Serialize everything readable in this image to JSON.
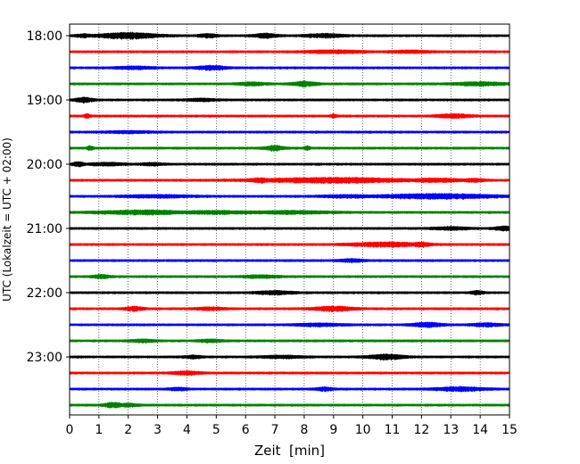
{
  "chart_data": {
    "type": "line",
    "title": "",
    "xlabel": "Zeit  [min]",
    "ylabel": "UTC (Lokalzeit = UTC + 02:00)",
    "xlim": [
      0,
      15
    ],
    "x_ticks": [
      0,
      1,
      2,
      3,
      4,
      5,
      6,
      7,
      8,
      9,
      10,
      11,
      12,
      13,
      14,
      15
    ],
    "y_tick_labels": [
      "18:00",
      "19:00",
      "20:00",
      "21:00",
      "22:00",
      "23:00"
    ],
    "y_tick_rows": [
      0,
      4,
      8,
      12,
      16,
      20
    ],
    "vertical_grid": true,
    "row_colors": [
      "#000000",
      "#ff0000",
      "#0000ff",
      "#008000"
    ],
    "rows": [
      {
        "start": "18:00",
        "bursts": [
          [
            2.0,
            1.0,
            3.0
          ],
          [
            4.7,
            0.3,
            1.8
          ],
          [
            6.7,
            0.4,
            2.0
          ],
          [
            8.7,
            0.6,
            2.0
          ],
          [
            0.5,
            0.3,
            1.4
          ]
        ]
      },
      {
        "start": "18:15",
        "bursts": [
          [
            9.0,
            1.0,
            1.4
          ],
          [
            11.6,
            0.6,
            1.2
          ]
        ]
      },
      {
        "start": "18:30",
        "bursts": [
          [
            4.8,
            0.5,
            2.0
          ],
          [
            2.2,
            0.6,
            1.3
          ]
        ]
      },
      {
        "start": "18:45",
        "bursts": [
          [
            8.0,
            0.4,
            2.4
          ],
          [
            6.2,
            0.5,
            1.4
          ],
          [
            14.0,
            0.8,
            1.8
          ]
        ]
      },
      {
        "start": "19:00",
        "bursts": [
          [
            0.5,
            0.3,
            2.4
          ],
          [
            4.5,
            0.5,
            1.2
          ]
        ]
      },
      {
        "start": "19:15",
        "bursts": [
          [
            0.6,
            0.1,
            2.3
          ],
          [
            9.0,
            0.1,
            1.8
          ],
          [
            13.1,
            0.6,
            1.8
          ]
        ]
      },
      {
        "start": "19:30",
        "bursts": [
          [
            2.0,
            0.8,
            0.9
          ]
        ]
      },
      {
        "start": "19:45",
        "bursts": [
          [
            0.7,
            0.1,
            2.2
          ],
          [
            7.0,
            0.3,
            2.6
          ],
          [
            8.1,
            0.1,
            2.0
          ]
        ]
      },
      {
        "start": "20:00",
        "bursts": [
          [
            0.3,
            0.2,
            2.2
          ],
          [
            1.3,
            0.6,
            1.4
          ],
          [
            2.8,
            0.4,
            1.2
          ]
        ]
      },
      {
        "start": "20:15",
        "bursts": [
          [
            6.5,
            0.4,
            2.0
          ],
          [
            9.0,
            2.5,
            2.5
          ],
          [
            12.5,
            0.9,
            1.8
          ],
          [
            13.8,
            0.4,
            1.4
          ]
        ]
      },
      {
        "start": "20:30",
        "bursts": [
          [
            12.5,
            2.0,
            2.4
          ],
          [
            3.0,
            1.2,
            1.3
          ],
          [
            9.5,
            1.0,
            1.2
          ]
        ]
      },
      {
        "start": "20:45",
        "bursts": [
          [
            2.5,
            1.5,
            2.0
          ],
          [
            5.0,
            1.5,
            1.4
          ],
          [
            7.5,
            1.5,
            1.4
          ]
        ]
      },
      {
        "start": "21:00",
        "bursts": [
          [
            14.8,
            0.3,
            2.2
          ],
          [
            13.0,
            0.6,
            1.4
          ]
        ]
      },
      {
        "start": "21:15",
        "bursts": [
          [
            10.8,
            1.2,
            2.2
          ],
          [
            12.0,
            0.3,
            2.4
          ]
        ]
      },
      {
        "start": "21:30",
        "bursts": [
          [
            9.6,
            0.4,
            1.4
          ]
        ]
      },
      {
        "start": "21:45",
        "bursts": [
          [
            1.1,
            0.3,
            1.6
          ],
          [
            6.5,
            0.6,
            1.3
          ]
        ]
      },
      {
        "start": "22:00",
        "bursts": [
          [
            7.0,
            0.6,
            1.8
          ],
          [
            13.9,
            0.2,
            1.8
          ]
        ]
      },
      {
        "start": "22:15",
        "bursts": [
          [
            2.2,
            0.3,
            2.2
          ],
          [
            9.0,
            0.7,
            2.2
          ],
          [
            4.8,
            0.5,
            1.3
          ]
        ]
      },
      {
        "start": "22:30",
        "bursts": [
          [
            12.2,
            0.5,
            2.2
          ],
          [
            14.2,
            0.5,
            1.6
          ],
          [
            8.5,
            0.8,
            1.3
          ]
        ]
      },
      {
        "start": "22:45",
        "bursts": [
          [
            2.5,
            0.4,
            1.4
          ],
          [
            4.8,
            0.4,
            1.3
          ]
        ]
      },
      {
        "start": "23:00",
        "bursts": [
          [
            10.8,
            0.6,
            2.5
          ],
          [
            4.2,
            0.3,
            1.4
          ],
          [
            7.2,
            0.7,
            1.2
          ]
        ]
      },
      {
        "start": "23:15",
        "bursts": [
          [
            4.0,
            0.5,
            1.6
          ]
        ]
      },
      {
        "start": "23:30",
        "bursts": [
          [
            13.3,
            0.8,
            2.0
          ],
          [
            8.7,
            0.3,
            1.6
          ],
          [
            3.7,
            0.3,
            1.3
          ]
        ]
      },
      {
        "start": "23:45",
        "bursts": [
          [
            1.5,
            0.3,
            2.6
          ],
          [
            2.0,
            0.3,
            1.4
          ]
        ]
      }
    ]
  }
}
